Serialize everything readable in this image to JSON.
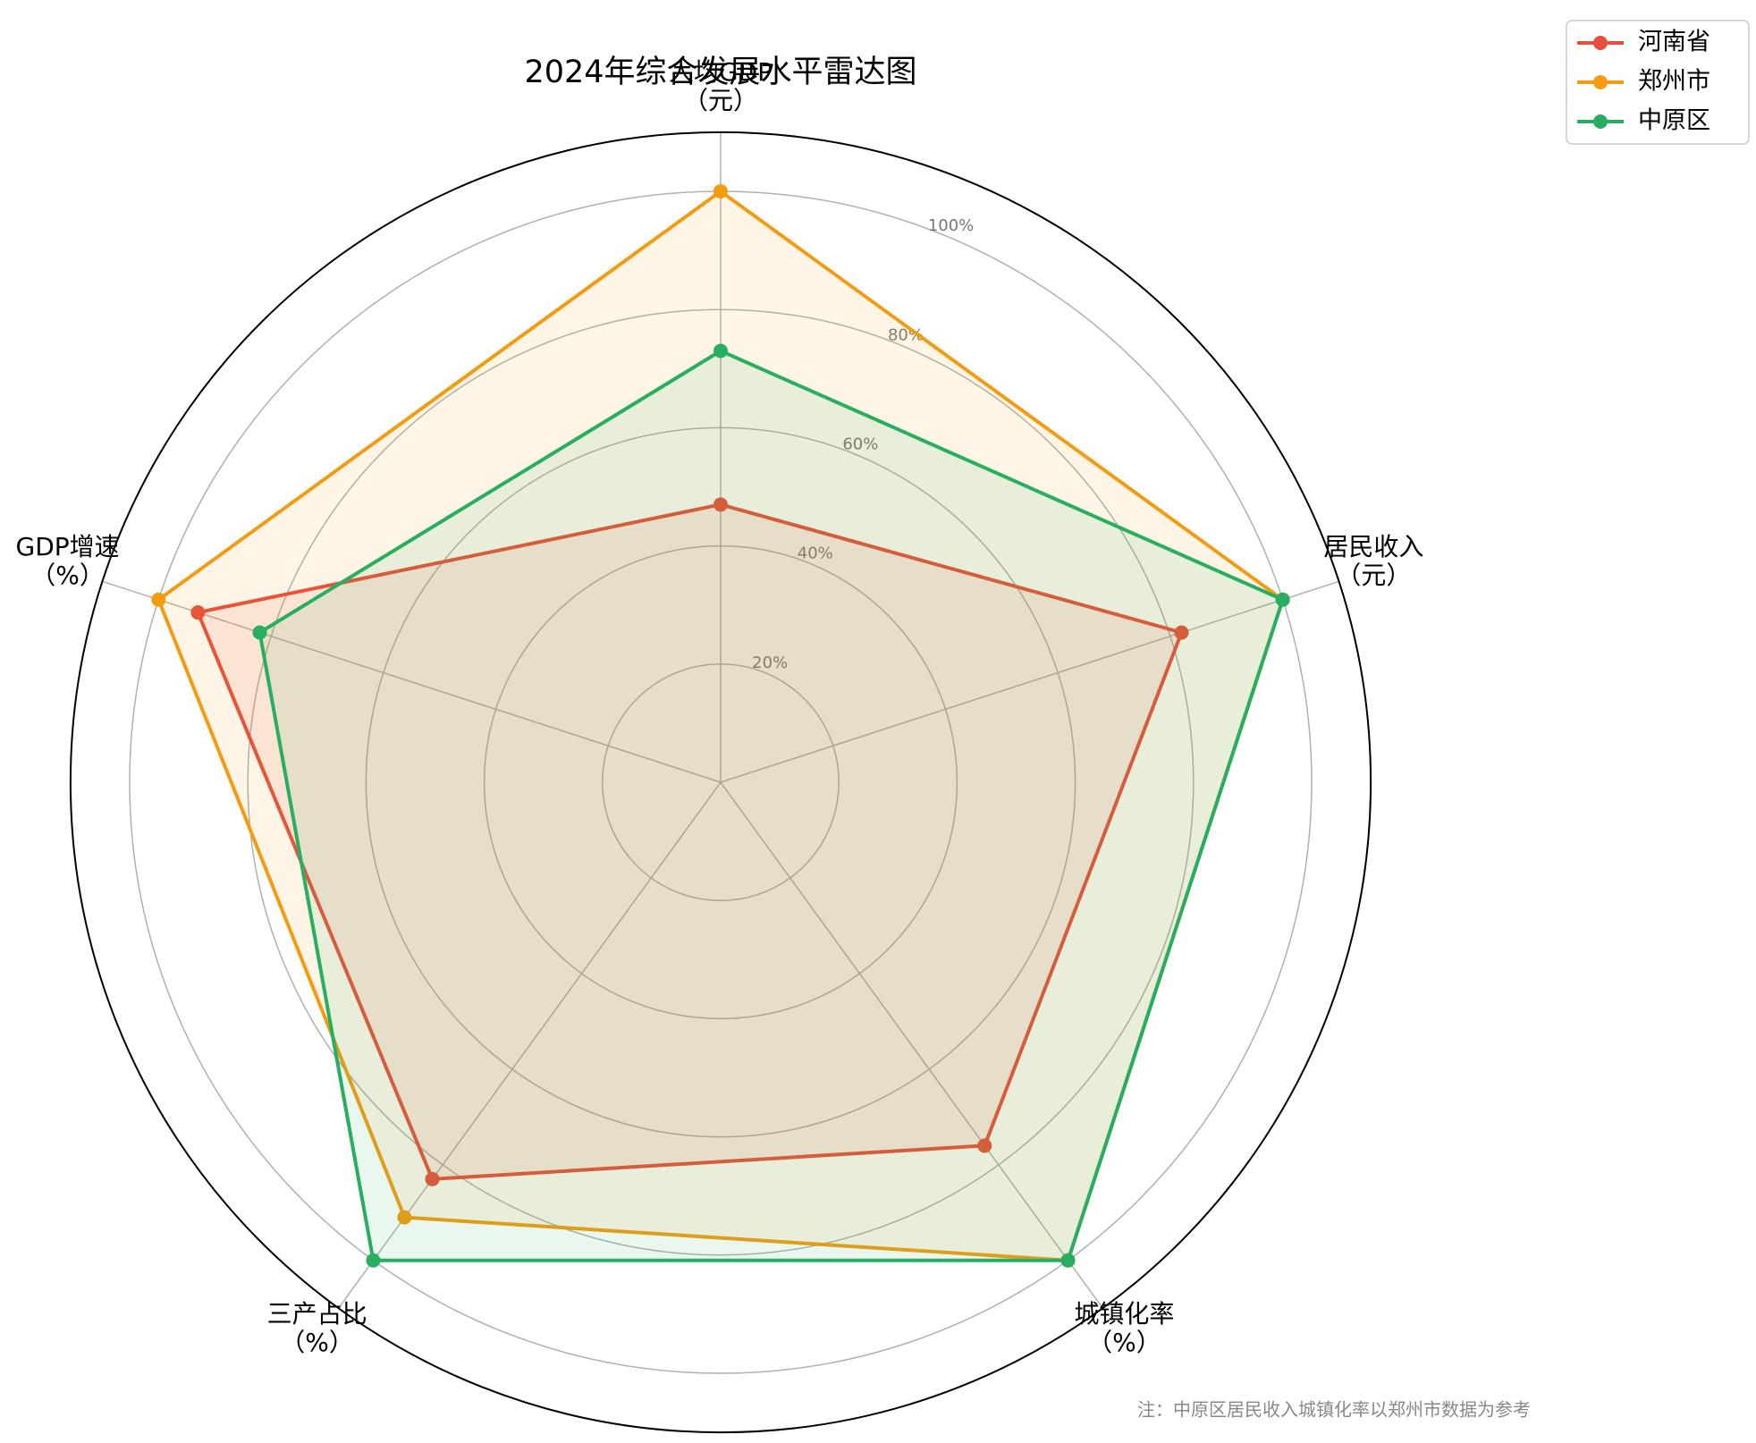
{
  "chart_data": {
    "type": "radar",
    "title": "2024年综合发展水平雷达图",
    "categories": [
      "人均GDP\n（元）",
      "居民收入\n（元）",
      "城镇化率\n（%）",
      "三产占比\n（%）",
      "GDP增速\n（%）"
    ],
    "series": [
      {
        "name": "河南省",
        "color": "#e74c3c",
        "values": [
          47,
          82,
          76,
          83,
          93
        ]
      },
      {
        "name": "郑州市",
        "color": "#f39c12",
        "values": [
          100,
          100,
          100,
          91,
          100
        ]
      },
      {
        "name": "中原区",
        "color": "#27ae60",
        "values": [
          73,
          100,
          100,
          100,
          82
        ]
      }
    ],
    "ylim": [
      0,
      110
    ],
    "yticks": [
      {
        "value": 20,
        "label": "20%"
      },
      {
        "value": 40,
        "label": "40%"
      },
      {
        "value": 60,
        "label": "60%"
      },
      {
        "value": 80,
        "label": "80%"
      },
      {
        "value": 100,
        "label": "100%"
      }
    ],
    "grid": true,
    "legend": "upper right",
    "annotation": "注：中原区居民收入城镇化率以郑州市数据为参考"
  }
}
